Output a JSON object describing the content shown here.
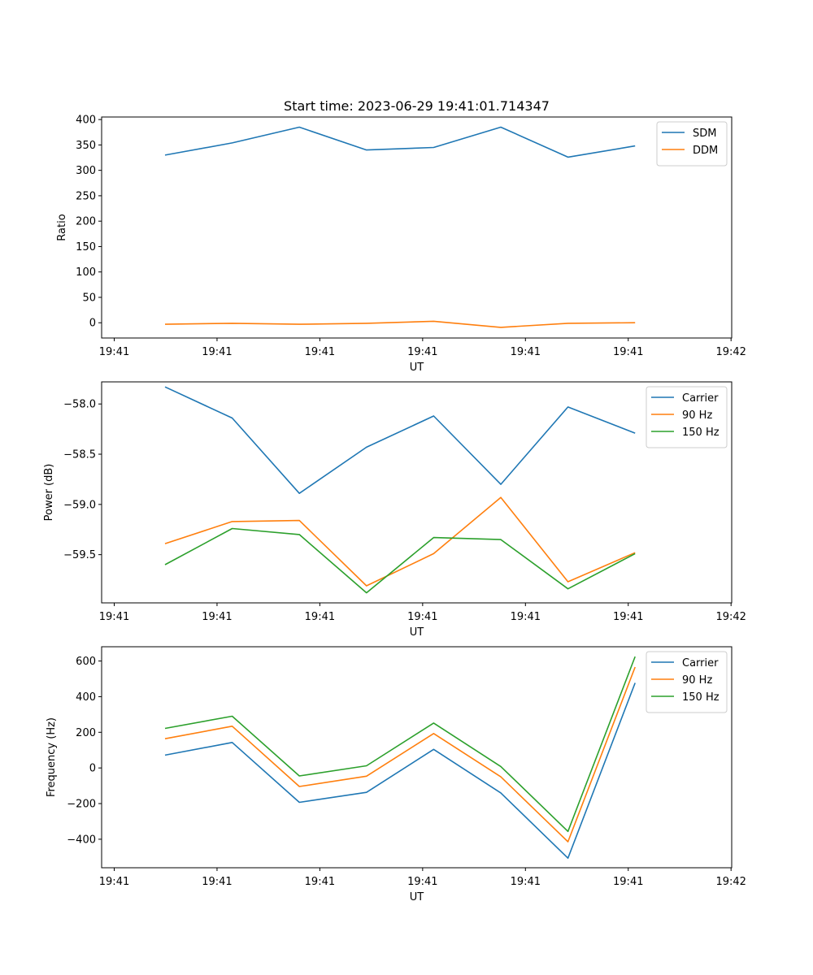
{
  "figure": {
    "title": "Start time: 2023-06-29 19:41:01.714347"
  },
  "chart_data": [
    {
      "type": "line",
      "xlabel": "UT",
      "ylabel": "Ratio",
      "xticks": [
        "19:41",
        "19:41",
        "19:41",
        "19:41",
        "19:41",
        "19:41",
        "19:42"
      ],
      "ylim": [
        -30,
        405
      ],
      "yticks": [
        0,
        50,
        100,
        150,
        200,
        250,
        300,
        350,
        400
      ],
      "ytick_labels": [
        "0",
        "50",
        "100",
        "150",
        "200",
        "250",
        "300",
        "350",
        "400"
      ],
      "legend_position": "upper right",
      "series": [
        {
          "name": "SDM",
          "color": "#1f77b4",
          "values": [
            330,
            354,
            385,
            340,
            345,
            385,
            326,
            348
          ]
        },
        {
          "name": "DDM",
          "color": "#ff7f0e",
          "values": [
            -3,
            -1,
            -3,
            -1,
            3,
            -9,
            -1,
            0
          ]
        }
      ]
    },
    {
      "type": "line",
      "xlabel": "UT",
      "ylabel": "Power (dB)",
      "xticks": [
        "19:41",
        "19:41",
        "19:41",
        "19:41",
        "19:41",
        "19:41",
        "19:42"
      ],
      "ylim": [
        -59.98,
        -57.78
      ],
      "yticks": [
        -58.0,
        -58.5,
        -59.0,
        -59.5
      ],
      "ytick_labels": [
        "−58.0",
        "−58.5",
        "−59.0",
        "−59.5"
      ],
      "legend_position": "upper right",
      "series": [
        {
          "name": "Carrier",
          "color": "#1f77b4",
          "values": [
            -57.83,
            -58.14,
            -58.89,
            -58.43,
            -58.12,
            -58.8,
            -58.03,
            -58.29
          ]
        },
        {
          "name": "90 Hz",
          "color": "#ff7f0e",
          "values": [
            -59.39,
            -59.17,
            -59.16,
            -59.81,
            -59.49,
            -58.93,
            -59.77,
            -59.48
          ]
        },
        {
          "name": "150 Hz",
          "color": "#2ca02c",
          "values": [
            -59.6,
            -59.24,
            -59.3,
            -59.88,
            -59.33,
            -59.35,
            -59.84,
            -59.49
          ]
        }
      ]
    },
    {
      "type": "line",
      "xlabel": "UT",
      "ylabel": "Frequency (Hz)",
      "xticks": [
        "19:41",
        "19:41",
        "19:41",
        "19:41",
        "19:41",
        "19:41",
        "19:42"
      ],
      "ylim": [
        -560,
        680
      ],
      "yticks": [
        600,
        400,
        200,
        0,
        -200,
        -400
      ],
      "ytick_labels": [
        "600",
        "400",
        "200",
        "0",
        "−200",
        "−400"
      ],
      "legend_position": "upper right",
      "series": [
        {
          "name": "Carrier",
          "color": "#1f77b4",
          "values": [
            72,
            143,
            -193,
            -137,
            104,
            -140,
            -506,
            477
          ]
        },
        {
          "name": "90 Hz",
          "color": "#ff7f0e",
          "values": [
            164,
            234,
            -104,
            -46,
            193,
            -50,
            -414,
            566
          ]
        },
        {
          "name": "150 Hz",
          "color": "#2ca02c",
          "values": [
            222,
            290,
            -45,
            12,
            252,
            8,
            -356,
            625
          ]
        }
      ]
    }
  ]
}
